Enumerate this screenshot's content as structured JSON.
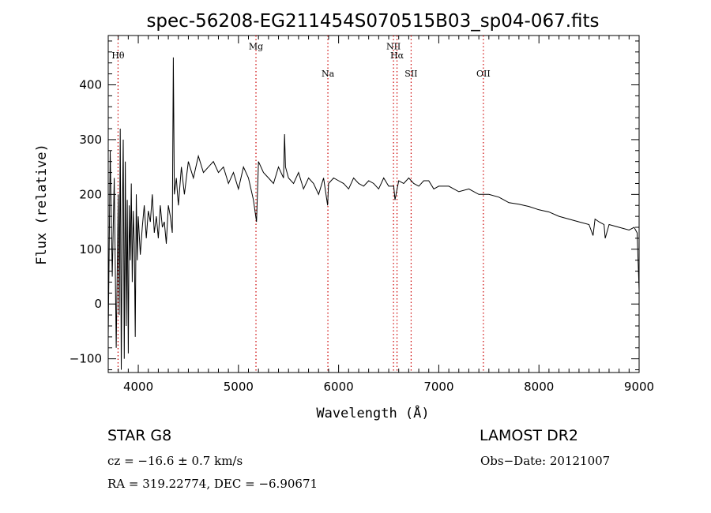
{
  "chart_data": {
    "type": "line",
    "title": "spec-56208-EG211454S070515B03_sp04-067.fits",
    "xlabel": "Wavelength (Å)",
    "ylabel": "Flux (relative)",
    "xlim": [
      3700,
      9000
    ],
    "ylim": [
      -125,
      490
    ],
    "x_ticks": [
      4000,
      5000,
      6000,
      7000,
      8000,
      9000
    ],
    "y_ticks": [
      -100,
      0,
      100,
      200,
      300,
      400
    ],
    "grid": false,
    "series": [
      {
        "color": "#000000",
        "x": [
          3700,
          3720,
          3740,
          3760,
          3780,
          3800,
          3810,
          3820,
          3830,
          3840,
          3850,
          3860,
          3870,
          3880,
          3890,
          3900,
          3910,
          3920,
          3930,
          3940,
          3950,
          3960,
          3970,
          3980,
          3990,
          4000,
          4020,
          4040,
          4060,
          4080,
          4100,
          4120,
          4140,
          4160,
          4180,
          4200,
          4220,
          4240,
          4260,
          4280,
          4300,
          4320,
          4340,
          4350,
          4360,
          4380,
          4400,
          4430,
          4460,
          4500,
          4550,
          4600,
          4650,
          4700,
          4750,
          4800,
          4850,
          4900,
          4950,
          5000,
          5050,
          5100,
          5150,
          5180,
          5200,
          5250,
          5300,
          5350,
          5400,
          5450,
          5460,
          5470,
          5500,
          5550,
          5600,
          5650,
          5700,
          5750,
          5800,
          5850,
          5890,
          5900,
          5950,
          6000,
          6050,
          6100,
          6150,
          6200,
          6250,
          6300,
          6350,
          6400,
          6450,
          6500,
          6550,
          6563,
          6600,
          6650,
          6700,
          6750,
          6800,
          6850,
          6900,
          6950,
          7000,
          7100,
          7200,
          7300,
          7400,
          7500,
          7600,
          7700,
          7800,
          7900,
          8000,
          8100,
          8200,
          8300,
          8400,
          8500,
          8540,
          8560,
          8600,
          8650,
          8662,
          8700,
          8800,
          8900,
          8950,
          8980,
          9000
        ],
        "values": [
          -60,
          280,
          50,
          230,
          -80,
          200,
          -20,
          320,
          -120,
          150,
          300,
          -100,
          260,
          -40,
          190,
          -90,
          180,
          80,
          220,
          40,
          170,
          110,
          -60,
          200,
          80,
          160,
          90,
          140,
          180,
          120,
          170,
          150,
          200,
          130,
          160,
          120,
          180,
          140,
          150,
          110,
          180,
          160,
          130,
          450,
          200,
          230,
          180,
          250,
          200,
          260,
          230,
          270,
          240,
          250,
          260,
          240,
          250,
          220,
          240,
          210,
          250,
          230,
          190,
          150,
          260,
          240,
          230,
          220,
          250,
          230,
          310,
          250,
          230,
          220,
          240,
          210,
          230,
          220,
          200,
          230,
          180,
          220,
          230,
          225,
          220,
          210,
          230,
          220,
          215,
          225,
          220,
          210,
          230,
          215,
          215,
          190,
          225,
          220,
          230,
          220,
          215,
          225,
          225,
          210,
          215,
          215,
          205,
          210,
          200,
          200,
          195,
          185,
          182,
          178,
          172,
          168,
          160,
          155,
          150,
          145,
          125,
          155,
          150,
          145,
          120,
          145,
          140,
          135,
          140,
          130,
          25
        ]
      }
    ],
    "annotations": [
      {
        "label": "Hθ",
        "x": 3798,
        "label_y": 448
      },
      {
        "label": "Mg",
        "x": 5175,
        "label_y": 465
      },
      {
        "label": "Na",
        "x": 5893,
        "label_y": 415
      },
      {
        "label": "NII",
        "x": 6548,
        "label_y": 465
      },
      {
        "label": "Hα",
        "x": 6583,
        "label_y": 448
      },
      {
        "label": "SII",
        "x": 6724,
        "label_y": 415
      },
      {
        "label": "OII",
        "x": 7445,
        "label_y": 415
      }
    ]
  },
  "info": {
    "object_type": "STAR    G8",
    "survey": "LAMOST DR2",
    "cz": "cz = −16.6 ± 0.7 km/s",
    "obs_date": "Obs−Date: 20121007",
    "coords": "RA = 319.22774, DEC =  −6.90671"
  }
}
